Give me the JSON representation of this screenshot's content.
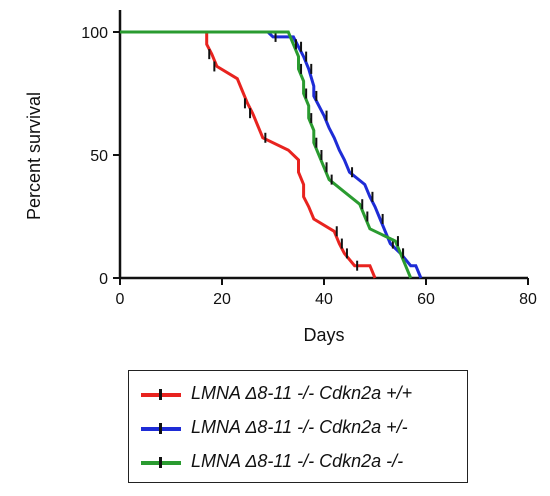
{
  "chart_data": {
    "type": "line",
    "xlabel": "Days",
    "ylabel": "Percent survival",
    "xlim": [
      0,
      80
    ],
    "ylim": [
      0,
      100
    ],
    "x_ticks": [
      0,
      20,
      40,
      60,
      80
    ],
    "y_ticks": [
      0,
      50,
      100
    ],
    "x_tick_labels": [
      "0",
      "20",
      "40",
      "60",
      "80"
    ],
    "y_tick_labels": [
      "0",
      "50",
      "100"
    ],
    "grid": false,
    "legend_position": "bottom",
    "series": [
      {
        "name": "LMNA Δ8-11 -/- Cdkn2a +/+",
        "color": "#e8231f",
        "steps": [
          [
            0,
            100
          ],
          [
            17,
            100
          ],
          [
            17,
            95
          ],
          [
            18,
            91
          ],
          [
            19,
            86
          ],
          [
            23,
            81
          ],
          [
            24,
            76
          ],
          [
            25,
            71
          ],
          [
            26,
            67
          ],
          [
            27,
            62
          ],
          [
            28,
            57
          ],
          [
            33,
            52
          ],
          [
            35,
            48
          ],
          [
            35,
            43
          ],
          [
            36,
            38
          ],
          [
            36,
            33
          ],
          [
            37,
            29
          ],
          [
            38,
            24
          ],
          [
            42,
            19
          ],
          [
            43,
            14
          ],
          [
            44,
            10
          ],
          [
            46,
            5
          ],
          [
            49,
            5
          ],
          [
            50,
            0
          ]
        ],
        "censored": [
          [
            17.5,
            91
          ],
          [
            18.5,
            86
          ],
          [
            24.5,
            71
          ],
          [
            25.5,
            67
          ],
          [
            28.5,
            57
          ],
          [
            42.5,
            19
          ],
          [
            43.5,
            14
          ],
          [
            44.5,
            10
          ],
          [
            46.5,
            5
          ]
        ]
      },
      {
        "name": "LMNA Δ8-11 -/- Cdkn2a +/-",
        "color": "#1e2cd6",
        "steps": [
          [
            0,
            100
          ],
          [
            29,
            100
          ],
          [
            30,
            98
          ],
          [
            34,
            98
          ],
          [
            35,
            94
          ],
          [
            36,
            90
          ],
          [
            37,
            85
          ],
          [
            38,
            78
          ],
          [
            38,
            74
          ],
          [
            39,
            70
          ],
          [
            40,
            66
          ],
          [
            41,
            61
          ],
          [
            42,
            57
          ],
          [
            43,
            52
          ],
          [
            44,
            48
          ],
          [
            45,
            43
          ],
          [
            48,
            38
          ],
          [
            49,
            33
          ],
          [
            50,
            29
          ],
          [
            51,
            24
          ],
          [
            52,
            19
          ],
          [
            53,
            14
          ],
          [
            55,
            10
          ],
          [
            57,
            5
          ],
          [
            58,
            5
          ],
          [
            59,
            0
          ]
        ],
        "censored": [
          [
            30.5,
            98
          ],
          [
            35.5,
            94
          ],
          [
            36.5,
            90
          ],
          [
            37.5,
            85
          ],
          [
            38.5,
            74
          ],
          [
            40.5,
            66
          ],
          [
            45.5,
            43
          ],
          [
            49.5,
            33
          ],
          [
            51.5,
            24
          ],
          [
            53.5,
            14
          ],
          [
            55.5,
            10
          ]
        ]
      },
      {
        "name": "LMNA Δ8-11 -/- Cdkn2a -/-",
        "color": "#2a9b30",
        "steps": [
          [
            0,
            100
          ],
          [
            33,
            100
          ],
          [
            34,
            95
          ],
          [
            35,
            90
          ],
          [
            35,
            85
          ],
          [
            36,
            80
          ],
          [
            36,
            75
          ],
          [
            37,
            70
          ],
          [
            37,
            65
          ],
          [
            38,
            60
          ],
          [
            38,
            55
          ],
          [
            39,
            50
          ],
          [
            40,
            45
          ],
          [
            41,
            40
          ],
          [
            44,
            35
          ],
          [
            47,
            30
          ],
          [
            48,
            25
          ],
          [
            49,
            20
          ],
          [
            54,
            15
          ],
          [
            55,
            10
          ],
          [
            56,
            5
          ],
          [
            57,
            0
          ]
        ],
        "censored": [
          [
            34.5,
            95
          ],
          [
            35.5,
            85
          ],
          [
            36.5,
            75
          ],
          [
            37.5,
            65
          ],
          [
            38.5,
            55
          ],
          [
            39.5,
            50
          ],
          [
            40.5,
            45
          ],
          [
            41.5,
            40
          ],
          [
            47.5,
            30
          ],
          [
            48.5,
            25
          ],
          [
            54.5,
            15
          ],
          [
            55.5,
            10
          ]
        ]
      }
    ]
  }
}
